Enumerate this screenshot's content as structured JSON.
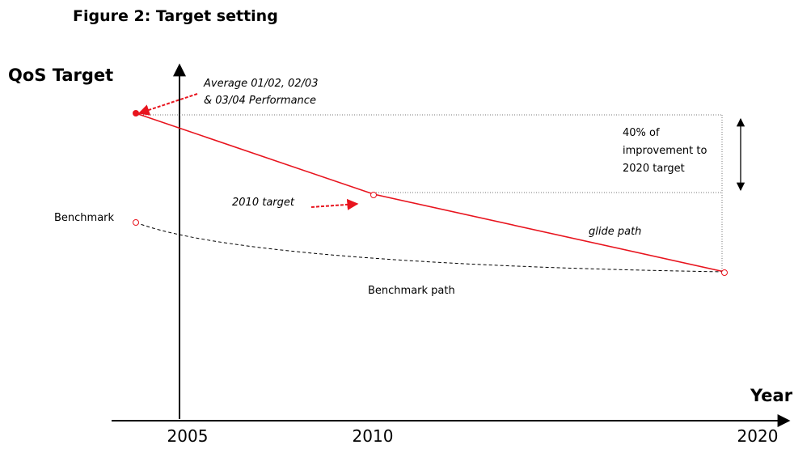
{
  "title": "Figure 2: Target setting",
  "y_axis": {
    "label": "QoS Target"
  },
  "x_axis": {
    "label": "Year",
    "ticks": [
      "2005",
      "2010",
      "2020"
    ]
  },
  "annotations": {
    "performance": [
      "Average 01/02, 02/03",
      "& 03/04 Performance"
    ],
    "improvement": [
      "40% of",
      "improvement to",
      "2020 target"
    ],
    "target_2010": "2010 target",
    "glide_path": "glide path",
    "benchmark": "Benchmark",
    "benchmark_path": "Benchmark path"
  }
}
